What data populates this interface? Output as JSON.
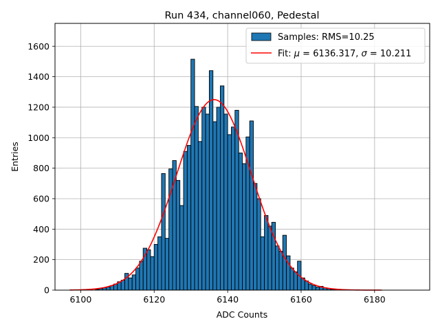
{
  "chart_data": {
    "type": "bar",
    "title": "Run 434, channel060, Pedestal",
    "xlabel": "ADC Counts",
    "ylabel": "Entries",
    "xlim": [
      6093,
      6195
    ],
    "ylim": [
      0,
      1750
    ],
    "grid": true,
    "legend_position": "top-right",
    "x_ticks": [
      6100,
      6120,
      6140,
      6160,
      6180
    ],
    "y_ticks": [
      0,
      200,
      400,
      600,
      800,
      1000,
      1200,
      1400,
      1600
    ],
    "bin_width": 1,
    "histogram": {
      "label": "Samples: RMS=10.25",
      "color": "#1f77b4",
      "bins": [
        6104,
        6105,
        6106,
        6107,
        6108,
        6109,
        6110,
        6111,
        6112,
        6113,
        6114,
        6115,
        6116,
        6117,
        6118,
        6119,
        6120,
        6121,
        6122,
        6123,
        6124,
        6125,
        6126,
        6127,
        6128,
        6129,
        6130,
        6131,
        6132,
        6133,
        6134,
        6135,
        6136,
        6137,
        6138,
        6139,
        6140,
        6141,
        6142,
        6143,
        6144,
        6145,
        6146,
        6147,
        6148,
        6149,
        6150,
        6151,
        6152,
        6153,
        6154,
        6155,
        6156,
        6157,
        6158,
        6159,
        6160,
        6161,
        6162,
        6163,
        6164,
        6165,
        6166,
        6167,
        6168,
        6169,
        6170
      ],
      "counts": [
        5,
        10,
        15,
        20,
        30,
        40,
        55,
        65,
        110,
        80,
        100,
        145,
        190,
        275,
        265,
        220,
        300,
        350,
        765,
        340,
        795,
        850,
        720,
        555,
        910,
        950,
        1515,
        1205,
        975,
        1200,
        1155,
        1440,
        1105,
        1200,
        1340,
        1155,
        1020,
        1070,
        1180,
        900,
        830,
        1005,
        1110,
        700,
        600,
        350,
        490,
        420,
        445,
        290,
        255,
        360,
        225,
        145,
        120,
        190,
        80,
        60,
        40,
        30,
        20,
        25,
        15,
        10,
        5,
        3,
        2
      ]
    },
    "fit": {
      "label": "Fit: μ = 6136.317, σ = 10.211",
      "label_parts": [
        "Fit: ",
        "μ",
        " = 6136.317, ",
        "σ",
        " = 10.211"
      ],
      "color": "#ff0000",
      "mu": 6136.317,
      "sigma": 10.211,
      "amplitude": 1250,
      "x_range": [
        6097,
        6182
      ]
    }
  }
}
